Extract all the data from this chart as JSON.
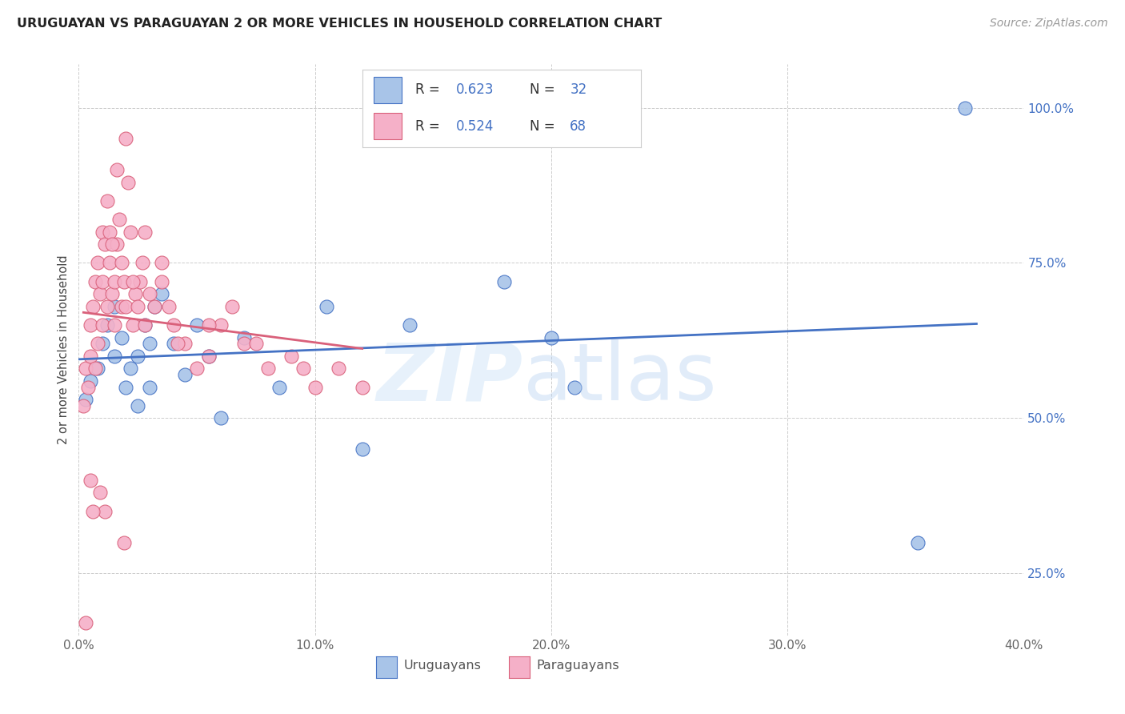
{
  "title": "URUGUAYAN VS PARAGUAYAN 2 OR MORE VEHICLES IN HOUSEHOLD CORRELATION CHART",
  "source": "Source: ZipAtlas.com",
  "ylabel": "2 or more Vehicles in Household",
  "xlabel_vals": [
    0.0,
    10.0,
    20.0,
    30.0,
    40.0
  ],
  "ylabel_vals": [
    25.0,
    50.0,
    75.0,
    100.0
  ],
  "xlim": [
    0.0,
    40.0
  ],
  "ylim": [
    15.0,
    107.0
  ],
  "uruguayan_fill": "#a8c4e8",
  "paraguayan_fill": "#f5b0c8",
  "uruguayan_edge": "#4472c4",
  "paraguayan_edge": "#d9607a",
  "uruguayan_R": 0.623,
  "uruguayan_N": 32,
  "paraguayan_R": 0.524,
  "paraguayan_N": 68,
  "legend_uruguayan": "Uruguayans",
  "legend_paraguayan": "Paraguayans",
  "title_color": "#222222",
  "source_color": "#999999",
  "tick_color_x": "#666666",
  "tick_color_y": "#4472c4",
  "grid_color": "#cccccc",
  "ylabel_color": "#444444",
  "uruguayan_x": [
    0.3,
    0.5,
    0.8,
    1.0,
    1.2,
    1.5,
    1.5,
    1.8,
    2.0,
    2.2,
    2.5,
    2.5,
    2.8,
    3.0,
    3.0,
    3.2,
    3.5,
    4.0,
    4.5,
    5.0,
    5.5,
    7.0,
    8.5,
    10.5,
    14.0,
    18.0,
    20.0,
    21.0,
    35.5,
    37.5,
    6.0,
    12.0
  ],
  "uruguayan_y": [
    53.0,
    56.0,
    58.0,
    62.0,
    65.0,
    68.0,
    60.0,
    63.0,
    55.0,
    58.0,
    60.0,
    52.0,
    65.0,
    62.0,
    55.0,
    68.0,
    70.0,
    62.0,
    57.0,
    65.0,
    60.0,
    63.0,
    55.0,
    68.0,
    65.0,
    72.0,
    63.0,
    55.0,
    30.0,
    100.0,
    50.0,
    45.0
  ],
  "paraguayan_x": [
    0.2,
    0.3,
    0.4,
    0.5,
    0.5,
    0.6,
    0.7,
    0.7,
    0.8,
    0.8,
    0.9,
    1.0,
    1.0,
    1.0,
    1.1,
    1.2,
    1.2,
    1.3,
    1.3,
    1.4,
    1.5,
    1.5,
    1.6,
    1.7,
    1.8,
    1.8,
    1.9,
    2.0,
    2.1,
    2.2,
    2.3,
    2.4,
    2.5,
    2.6,
    2.7,
    2.8,
    3.0,
    3.2,
    3.5,
    4.0,
    4.5,
    5.0,
    5.5,
    6.0,
    6.5,
    7.0,
    8.0,
    9.0,
    10.0,
    11.0,
    12.0,
    2.8,
    3.8,
    4.2,
    1.6,
    2.0,
    1.4,
    2.3,
    3.5,
    5.5,
    7.5,
    9.5,
    0.5,
    1.1,
    1.9,
    0.3,
    0.6,
    0.9
  ],
  "paraguayan_y": [
    52.0,
    58.0,
    55.0,
    60.0,
    65.0,
    68.0,
    72.0,
    58.0,
    75.0,
    62.0,
    70.0,
    80.0,
    65.0,
    72.0,
    78.0,
    85.0,
    68.0,
    75.0,
    80.0,
    70.0,
    72.0,
    65.0,
    78.0,
    82.0,
    75.0,
    68.0,
    72.0,
    68.0,
    88.0,
    80.0,
    65.0,
    70.0,
    68.0,
    72.0,
    75.0,
    80.0,
    70.0,
    68.0,
    72.0,
    65.0,
    62.0,
    58.0,
    60.0,
    65.0,
    68.0,
    62.0,
    58.0,
    60.0,
    55.0,
    58.0,
    55.0,
    65.0,
    68.0,
    62.0,
    90.0,
    95.0,
    78.0,
    72.0,
    75.0,
    65.0,
    62.0,
    58.0,
    40.0,
    35.0,
    30.0,
    17.0,
    35.0,
    38.0
  ]
}
